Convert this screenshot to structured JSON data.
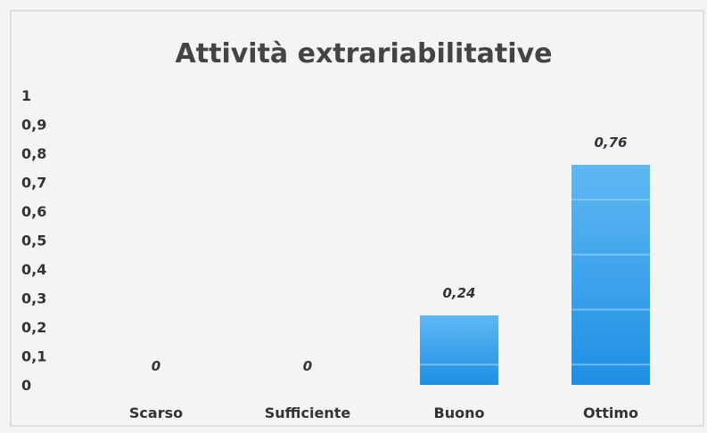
{
  "chart_data": {
    "type": "bar",
    "title": "Attività extrariabilitative",
    "categories": [
      "Scarso",
      "Sufficiente",
      "Buono",
      "Ottimo"
    ],
    "values": [
      0,
      0,
      0.24,
      0.76
    ],
    "data_labels": [
      "0",
      "0",
      "0,24",
      "0,76"
    ],
    "yticks": [
      "0",
      "0,1",
      "0,2",
      "0,3",
      "0,4",
      "0,5",
      "0,6",
      "0,7",
      "0,8",
      "0,9",
      "1"
    ],
    "ylim": [
      0,
      1
    ],
    "xlabel": "",
    "ylabel": "",
    "grid": false,
    "legend": "none",
    "colors": {
      "bar_top": "#5fb8f3",
      "bar_bottom": "#1e8fe4",
      "bar_band": "#8fcdf6",
      "text": "#333333",
      "title": "#444444",
      "border": "#c9c9c9",
      "background": "#f4f4f2"
    }
  }
}
